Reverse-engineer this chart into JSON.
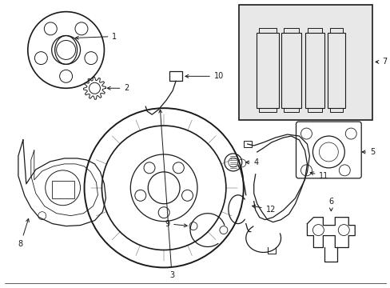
{
  "bg_color": "#ffffff",
  "lc": "#1a1a1a",
  "lw": 0.9,
  "figsize": [
    4.89,
    3.6
  ],
  "dpi": 100
}
